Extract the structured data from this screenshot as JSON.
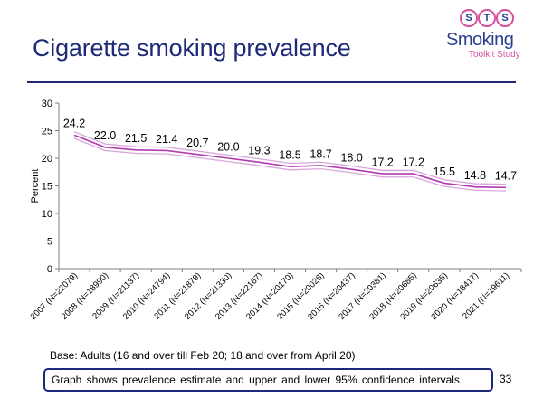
{
  "slide": {
    "title": "Cigarette smoking prevalence",
    "base_note": "Base: Adults (16 and over till Feb 20; 18 and over from April 20)",
    "box_note": "Graph shows prevalence  estimate and upper and lower 95% confidence intervals",
    "page_number": "33"
  },
  "logo": {
    "letters": [
      "S",
      "T",
      "S"
    ],
    "word": "Smoking",
    "subtitle": "Toolkit Study"
  },
  "colors": {
    "title": "#1e2a78",
    "estimate_line": "#b23bb0",
    "ci_lines": "#d9a6dc",
    "logo_pink": "#d64fa0"
  },
  "chart_data": {
    "type": "line",
    "title": "",
    "xlabel": "",
    "ylabel": "Percent",
    "ylim": [
      0,
      30
    ],
    "yticks": [
      0,
      5,
      10,
      15,
      20,
      25,
      30
    ],
    "categories": [
      "2007 (N=22079)",
      "2008 (N=18990)",
      "2009 (N=21137)",
      "2010 (N=24794)",
      "2011 (N=21879)",
      "2012 (N=21330)",
      "2013 (N=22167)",
      "2014 (N=20170)",
      "2015 (N=20026)",
      "2016 (N=20437)",
      "2017 (N=20381)",
      "2018 (N=20685)",
      "2019 (N=20635)",
      "2020 (N=18417)",
      "2021 (N=19611)"
    ],
    "series": [
      {
        "name": "Upper 95% CI",
        "values": [
          24.8,
          22.6,
          22.1,
          22.0,
          21.3,
          20.6,
          19.9,
          19.1,
          19.3,
          18.6,
          17.8,
          17.8,
          16.1,
          15.4,
          15.3
        ]
      },
      {
        "name": "Estimate",
        "values": [
          24.2,
          22.0,
          21.5,
          21.4,
          20.7,
          20.0,
          19.3,
          18.5,
          18.7,
          18.0,
          17.2,
          17.2,
          15.5,
          14.8,
          14.7
        ]
      },
      {
        "name": "Lower 95% CI",
        "values": [
          23.6,
          21.4,
          20.9,
          20.8,
          20.1,
          19.4,
          18.7,
          17.9,
          18.1,
          17.4,
          16.6,
          16.6,
          14.9,
          14.2,
          14.1
        ]
      }
    ],
    "data_labels": [
      "24.2",
      "22.0",
      "21.5",
      "21.4",
      "20.7",
      "20.0",
      "19.3",
      "18.5",
      "18.7",
      "18.0",
      "17.2",
      "17.2",
      "15.5",
      "14.8",
      "14.7"
    ]
  }
}
